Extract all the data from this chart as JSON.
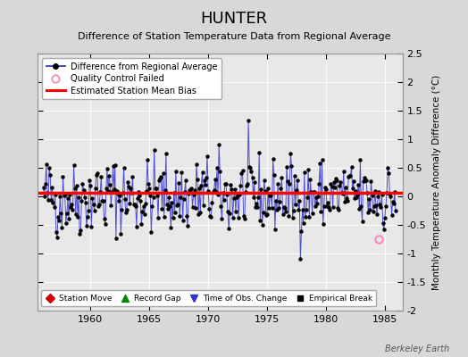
{
  "title": "HUNTER",
  "subtitle": "Difference of Station Temperature Data from Regional Average",
  "ylabel": "Monthly Temperature Anomaly Difference (°C)",
  "mean_bias": 0.07,
  "xlim": [
    1955.5,
    1986.5
  ],
  "ylim": [
    -2.0,
    2.5
  ],
  "yticks": [
    -2.0,
    -1.5,
    -1.0,
    -0.5,
    0.0,
    0.5,
    1.0,
    1.5,
    2.0,
    2.5
  ],
  "xticks": [
    1960,
    1965,
    1970,
    1975,
    1980,
    1985
  ],
  "line_color": "#3333cc",
  "marker_color": "#000000",
  "bias_color": "#ff0000",
  "qc_color": "#ff88bb",
  "fig_bg_color": "#d8d8d8",
  "plot_bg_color": "#e8e8e8",
  "watermark": "Berkeley Earth",
  "seed": 42
}
